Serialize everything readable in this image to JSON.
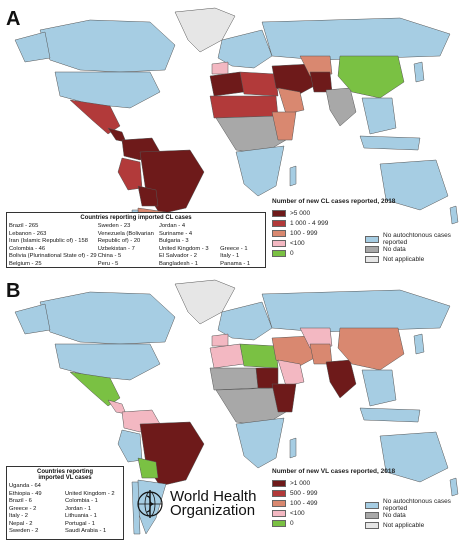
{
  "panel_a": {
    "label": "A",
    "legend_title": "Number of new CL cases reported, 2018",
    "categories": [
      {
        "label": ">5 000",
        "color": "#6e1a1a"
      },
      {
        "label": "1 000 - 4 999",
        "color": "#b23a3a"
      },
      {
        "label": "100 - 999",
        "color": "#d98870"
      },
      {
        "label": "<100",
        "color": "#f3b8c2"
      },
      {
        "label": "0",
        "color": "#7ac143"
      }
    ],
    "other": [
      {
        "label": "No autochtonous cases reported",
        "color": "#a6cde3"
      },
      {
        "label": "No data",
        "color": "#a8a8a8"
      },
      {
        "label": "Not applicable",
        "color": "#e6e6e6"
      }
    ],
    "imported_title": "Countries reporting imported CL cases",
    "imported_cols": [
      [
        "Brazil - 265",
        "Lebanon - 263",
        "Iran (Islamic Republic of) - 158",
        "Colombia - 46",
        "Bolivia (Plurinational State of) - 29",
        "Belgium - 25"
      ],
      [
        "Sweden - 23",
        "Venezuela (Bolivarian",
        "Republic of) - 20",
        "Uzbekistan - 7",
        "China - 5",
        "Peru - 5"
      ],
      [
        "Jordan - 4",
        "Suriname - 4",
        "Bulgaria - 3",
        "United Kingdom - 3",
        "El Salvador - 2",
        "Bangladesh - 1"
      ],
      [
        "",
        "",
        "",
        "Greece - 1",
        "Italy - 1",
        "Panama - 1"
      ]
    ]
  },
  "panel_b": {
    "label": "B",
    "legend_title": "Number of new VL cases reported, 2018",
    "categories": [
      {
        "label": ">1 000",
        "color": "#6e1a1a"
      },
      {
        "label": "500 - 999",
        "color": "#b23a3a"
      },
      {
        "label": "100 - 499",
        "color": "#d98870"
      },
      {
        "label": "<100",
        "color": "#f3b8c2"
      },
      {
        "label": "0",
        "color": "#7ac143"
      }
    ],
    "other": [
      {
        "label": "No autochtonous cases reported",
        "color": "#a6cde3"
      },
      {
        "label": "No data",
        "color": "#a8a8a8"
      },
      {
        "label": "Not applicable",
        "color": "#e6e6e6"
      }
    ],
    "imported_title_1": "Countries reporting",
    "imported_title_2": "imported VL cases",
    "imported_cols": [
      [
        "Uganda - 64",
        "Ethiopia - 49",
        "Brazil - 6",
        "Greece - 2",
        "Italy - 2",
        "Nepal - 2",
        "Sweden - 2"
      ],
      [
        "",
        "United Kingdom - 2",
        "Colombia - 1",
        "Jordan - 1",
        "Lithuania - 1",
        "Portugal - 1",
        "Saudi Arabia - 1"
      ]
    ]
  },
  "who": {
    "line1": "World Health",
    "line2": "Organization"
  },
  "colors": {
    "ocean": "#ffffff",
    "nodata": "#a8a8a8",
    "autoch": "#a6cde3",
    "border": "#555555"
  }
}
